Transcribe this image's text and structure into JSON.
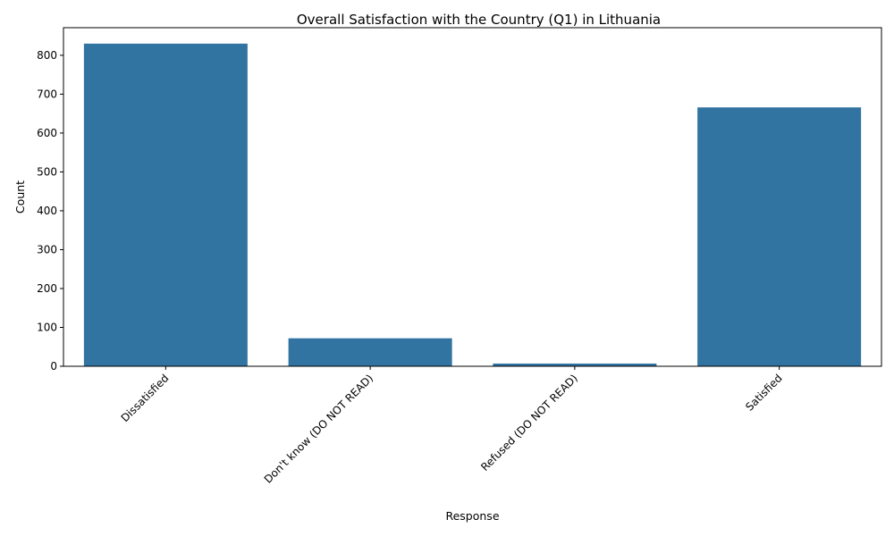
{
  "chart_data": {
    "type": "bar",
    "title": "Overall Satisfaction with the Country (Q1) in Lithuania",
    "xlabel": "Response",
    "ylabel": "Count",
    "categories": [
      "Dissatisfied",
      "Don't know (DO NOT READ)",
      "Refused (DO NOT READ)",
      "Satisfied"
    ],
    "values": [
      830,
      72,
      7,
      666
    ],
    "ylim": [
      0,
      871
    ],
    "yticks": [
      0,
      100,
      200,
      300,
      400,
      500,
      600,
      700,
      800
    ],
    "grid": false,
    "legend": "none",
    "bar_color": "#3274a1"
  }
}
